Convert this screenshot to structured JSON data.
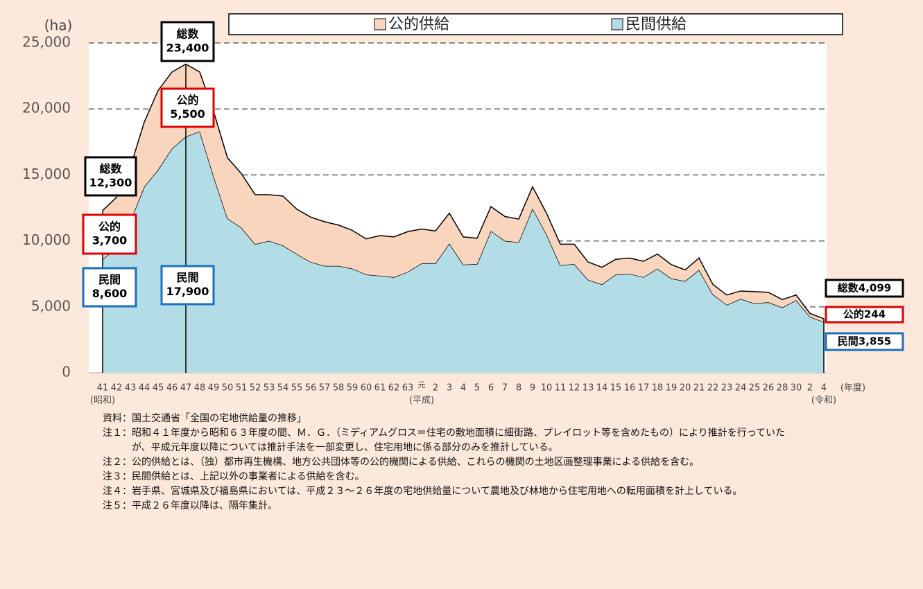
{
  "chart_data": {
    "type": "stacked_area",
    "y_unit": "(ha)",
    "x_unit": "(年度)",
    "categories": [
      "41",
      "42",
      "43",
      "44",
      "45",
      "46",
      "47",
      "48",
      "49",
      "50",
      "51",
      "52",
      "53",
      "54",
      "55",
      "56",
      "57",
      "58",
      "59",
      "60",
      "61",
      "62",
      "63",
      "元",
      "2",
      "3",
      "4",
      "5",
      "6",
      "7",
      "8",
      "9",
      "10",
      "11",
      "12",
      "13",
      "14",
      "15",
      "16",
      "17",
      "18",
      "19",
      "20",
      "21",
      "22",
      "23",
      "24",
      "25",
      "26",
      "28",
      "30",
      "2",
      "4"
    ],
    "category_eras": [
      "(昭和)",
      null,
      null,
      null,
      null,
      null,
      null,
      null,
      null,
      null,
      null,
      null,
      null,
      null,
      null,
      null,
      null,
      null,
      null,
      null,
      null,
      null,
      null,
      "(平成)",
      null,
      null,
      null,
      null,
      null,
      null,
      null,
      null,
      null,
      null,
      null,
      null,
      null,
      null,
      null,
      null,
      null,
      null,
      null,
      null,
      null,
      null,
      null,
      null,
      null,
      null,
      null,
      null,
      "(令和)"
    ],
    "series": [
      {
        "name": "民間供給",
        "color": "#b3dde6",
        "values": [
          8600,
          9500,
          11500,
          14100,
          15400,
          17000,
          17900,
          18300,
          14900,
          11700,
          11000,
          9750,
          10000,
          9650,
          9000,
          8400,
          8100,
          8100,
          7900,
          7450,
          7350,
          7250,
          7650,
          8300,
          8300,
          9800,
          8200,
          8250,
          10750,
          10000,
          9900,
          12450,
          10500,
          8150,
          8250,
          7050,
          6700,
          7450,
          7500,
          7250,
          7900,
          7150,
          6950,
          7800,
          5950,
          5150,
          5600,
          5250,
          5350,
          4950,
          5500,
          4250,
          3855
        ]
      },
      {
        "name": "公的供給",
        "color": "#f9d5bd",
        "values": [
          3700,
          3800,
          4100,
          4900,
          6000,
          5800,
          5500,
          4500,
          4900,
          4600,
          4100,
          3750,
          3500,
          3750,
          3400,
          3400,
          3350,
          3100,
          2900,
          2700,
          3050,
          3050,
          3050,
          2600,
          2450,
          2300,
          2100,
          1950,
          1850,
          1850,
          1750,
          1650,
          1600,
          1600,
          1500,
          1350,
          1300,
          1150,
          1200,
          1200,
          1100,
          1050,
          850,
          900,
          750,
          750,
          600,
          900,
          750,
          600,
          400,
          250,
          244
        ]
      }
    ],
    "legend_order": [
      1,
      0
    ],
    "ylim": [
      0,
      25000
    ],
    "yticks": [
      0,
      {
        "value": 5000,
        "label": "5,000"
      },
      {
        "value": 10000,
        "label": "10,000"
      },
      {
        "value": 15000,
        "label": "15,000"
      },
      {
        "value": 20000,
        "label": "20,000"
      },
      {
        "value": 25000,
        "label": "25,000"
      }
    ],
    "grid": true,
    "annotations": [
      {
        "lines": [
          "総数",
          "12,300"
        ],
        "color": "#000000"
      },
      {
        "lines": [
          "公的",
          "3,700"
        ],
        "color": "#e00000"
      },
      {
        "lines": [
          "民間",
          "8,600"
        ],
        "color": "#1a6fc0"
      },
      {
        "lines": [
          "総数",
          "23,400"
        ],
        "color": "#000000"
      },
      {
        "lines": [
          "公的",
          "5,500"
        ],
        "color": "#e00000"
      },
      {
        "lines": [
          "民間",
          "17,900"
        ],
        "color": "#1a6fc0"
      },
      {
        "lines": [
          "総数4,099"
        ],
        "color": "#000000"
      },
      {
        "lines": [
          "公的244"
        ],
        "color": "#e00000"
      },
      {
        "lines": [
          "民間3,855"
        ],
        "color": "#1a6fc0"
      }
    ]
  },
  "notes": [
    {
      "label": "資料：",
      "text": "国土交通省「全国の宅地供給量の推移」"
    },
    {
      "label": "注１：",
      "text": "昭和４１年度から昭和６３年度の間、Ｍ．Ｇ．（ミディアムグロス＝住宅の敷地面積に細街路、プレイロット等を含めたもの）により推計を行っていたが、平成元年度以降については推計手法を一部変更し、住宅用地に係る部分のみを推計している。"
    },
    {
      "label": "注２：",
      "text": "公的供給とは、（独）都市再生機構、地方公共団体等の公的機関による供給、これらの機関の土地区画整理事業による供給を含む。"
    },
    {
      "label": "注３：",
      "text": "民間供給とは、上記以外の事業者による供給を含む。"
    },
    {
      "label": "注４：",
      "text": "岩手県、宮城県及び福島県においては、平成２３～２６年度の宅地供給量について農地及び林地から住宅用地への転用面積を計上している。"
    },
    {
      "label": "注５：",
      "text": "平成２６年度以降は、隔年集計。"
    }
  ]
}
